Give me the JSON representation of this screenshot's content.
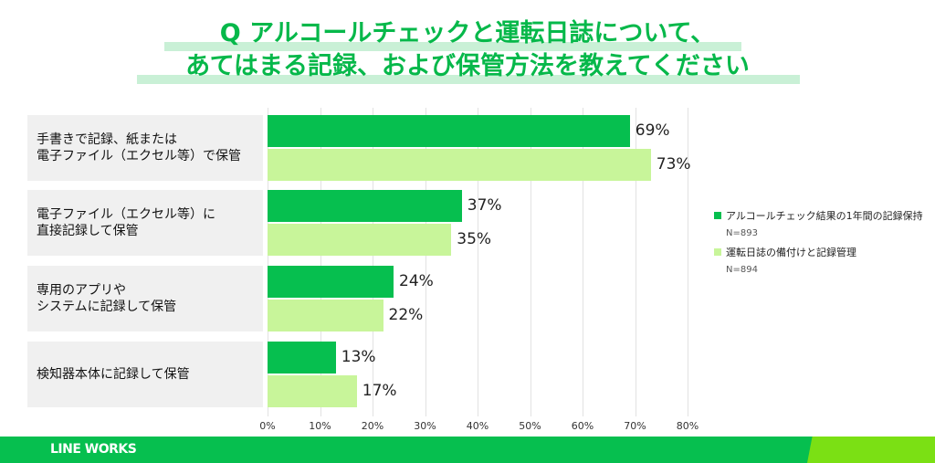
{
  "title": {
    "line1": "Q アルコールチェックと運転日誌について、",
    "line2": "あてはまる記録、および保管方法を教えてください"
  },
  "chart_data": {
    "type": "bar",
    "orientation": "horizontal",
    "categories": [
      "手書きで記録、紙または\n電子ファイル（エクセル等）で保管",
      "電子ファイル（エクセル等）に\n直接記録して保管",
      "専用のアプリや\nシステムに記録して保管",
      "検知器本体に記録して保管"
    ],
    "series": [
      {
        "name": "アルコールチェック結果の1年間の記録保持",
        "n": "N=893",
        "color": "#06bf4f",
        "values": [
          69,
          37,
          24,
          13
        ]
      },
      {
        "name": "運転日誌の備付けと記録管理",
        "n": "N=894",
        "color": "#c8f59a",
        "values": [
          73,
          35,
          22,
          17
        ]
      }
    ],
    "xlim": [
      0,
      80
    ],
    "ticks": [
      "0%",
      "10%",
      "20%",
      "30%",
      "40%",
      "50%",
      "60%",
      "70%",
      "80%"
    ],
    "legend": "right",
    "grid": true
  },
  "footer": {
    "logo": "LINE WORKS"
  }
}
